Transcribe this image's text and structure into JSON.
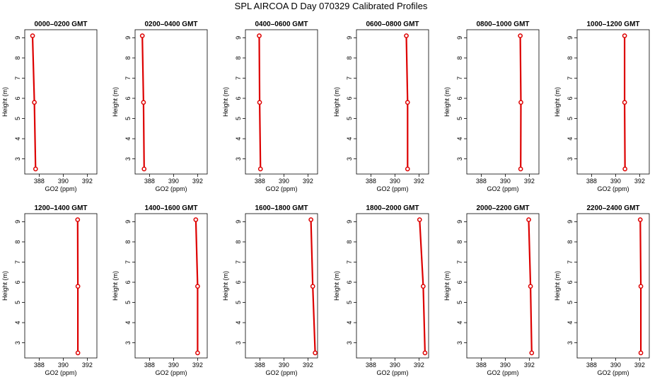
{
  "figure": {
    "title": "SPL AIRCOA D  Day 070329  Calibrated Profiles"
  },
  "chart_data": [
    {
      "type": "line",
      "title": "0000–0200 GMT",
      "xlabel": "GO2 (ppm)",
      "ylabel": "Height (m)",
      "xlim": [
        386.8,
        392.8
      ],
      "ylim": [
        2.25,
        9.4
      ],
      "xticks": [
        388,
        390,
        392
      ],
      "yticks": [
        3,
        4,
        5,
        6,
        7,
        8,
        9
      ],
      "series": [
        {
          "x": [
            387.45,
            387.6,
            387.7
          ],
          "y": [
            9.1,
            5.8,
            2.5
          ]
        }
      ]
    },
    {
      "type": "line",
      "title": "0200–0400 GMT",
      "xlabel": "GO2 (ppm)",
      "ylabel": "Height (m)",
      "xlim": [
        386.8,
        392.8
      ],
      "ylim": [
        2.25,
        9.4
      ],
      "xticks": [
        388,
        390,
        392
      ],
      "yticks": [
        3,
        4,
        5,
        6,
        7,
        8,
        9
      ],
      "series": [
        {
          "x": [
            387.4,
            387.5,
            387.55
          ],
          "y": [
            9.1,
            5.8,
            2.5
          ]
        }
      ]
    },
    {
      "type": "line",
      "title": "0400–0600 GMT",
      "xlabel": "GO2 (ppm)",
      "ylabel": "Height (m)",
      "xlim": [
        386.8,
        392.8
      ],
      "ylim": [
        2.25,
        9.4
      ],
      "xticks": [
        388,
        390,
        392
      ],
      "yticks": [
        3,
        4,
        5,
        6,
        7,
        8,
        9
      ],
      "series": [
        {
          "x": [
            387.95,
            387.98,
            388.05
          ],
          "y": [
            9.1,
            5.8,
            2.5
          ]
        }
      ]
    },
    {
      "type": "line",
      "title": "0600–0800 GMT",
      "xlabel": "GO2 (ppm)",
      "ylabel": "Height (m)",
      "xlim": [
        386.8,
        392.8
      ],
      "ylim": [
        2.25,
        9.4
      ],
      "xticks": [
        388,
        390,
        392
      ],
      "yticks": [
        3,
        4,
        5,
        6,
        7,
        8,
        9
      ],
      "series": [
        {
          "x": [
            390.95,
            391.05,
            391.05
          ],
          "y": [
            9.1,
            5.8,
            2.5
          ]
        }
      ]
    },
    {
      "type": "line",
      "title": "0800–1000 GMT",
      "xlabel": "GO2 (ppm)",
      "ylabel": "Height (m)",
      "xlim": [
        386.8,
        392.8
      ],
      "ylim": [
        2.25,
        9.4
      ],
      "xticks": [
        388,
        390,
        392
      ],
      "yticks": [
        3,
        4,
        5,
        6,
        7,
        8,
        9
      ],
      "series": [
        {
          "x": [
            391.25,
            391.3,
            391.28
          ],
          "y": [
            9.1,
            5.8,
            2.5
          ]
        }
      ]
    },
    {
      "type": "line",
      "title": "1000–1200 GMT",
      "xlabel": "GO2 (ppm)",
      "ylabel": "Height (m)",
      "xlim": [
        386.8,
        392.8
      ],
      "ylim": [
        2.25,
        9.4
      ],
      "xticks": [
        388,
        390,
        392
      ],
      "yticks": [
        3,
        4,
        5,
        6,
        7,
        8,
        9
      ],
      "series": [
        {
          "x": [
            390.75,
            390.75,
            390.78
          ],
          "y": [
            9.1,
            5.8,
            2.5
          ]
        }
      ]
    },
    {
      "type": "line",
      "title": "1200–1400 GMT",
      "xlabel": "GO2 (ppm)",
      "ylabel": "Height (m)",
      "xlim": [
        386.8,
        392.8
      ],
      "ylim": [
        2.25,
        9.4
      ],
      "xticks": [
        388,
        390,
        392
      ],
      "yticks": [
        3,
        4,
        5,
        6,
        7,
        8,
        9
      ],
      "series": [
        {
          "x": [
            391.2,
            391.22,
            391.22
          ],
          "y": [
            9.1,
            5.8,
            2.5
          ]
        }
      ]
    },
    {
      "type": "line",
      "title": "1400–1600 GMT",
      "xlabel": "GO2 (ppm)",
      "ylabel": "Height (m)",
      "xlim": [
        386.8,
        392.8
      ],
      "ylim": [
        2.25,
        9.4
      ],
      "xticks": [
        388,
        390,
        392
      ],
      "yticks": [
        3,
        4,
        5,
        6,
        7,
        8,
        9
      ],
      "series": [
        {
          "x": [
            391.85,
            392.0,
            392.0
          ],
          "y": [
            9.1,
            5.8,
            2.5
          ]
        }
      ]
    },
    {
      "type": "line",
      "title": "1600–1800 GMT",
      "xlabel": "GO2 (ppm)",
      "ylabel": "Height (m)",
      "xlim": [
        386.8,
        392.8
      ],
      "ylim": [
        2.25,
        9.4
      ],
      "xticks": [
        388,
        390,
        392
      ],
      "yticks": [
        3,
        4,
        5,
        6,
        7,
        8,
        9
      ],
      "series": [
        {
          "x": [
            392.25,
            392.4,
            392.6
          ],
          "y": [
            9.1,
            5.8,
            2.5
          ]
        }
      ]
    },
    {
      "type": "line",
      "title": "1800–2000 GMT",
      "xlabel": "GO2 (ppm)",
      "ylabel": "Height (m)",
      "xlim": [
        386.8,
        392.8
      ],
      "ylim": [
        2.25,
        9.4
      ],
      "xticks": [
        388,
        390,
        392
      ],
      "yticks": [
        3,
        4,
        5,
        6,
        7,
        8,
        9
      ],
      "series": [
        {
          "x": [
            392.05,
            392.35,
            392.5
          ],
          "y": [
            9.1,
            5.8,
            2.5
          ]
        }
      ]
    },
    {
      "type": "line",
      "title": "2000–2200 GMT",
      "xlabel": "GO2 (ppm)",
      "ylabel": "Height (m)",
      "xlim": [
        386.8,
        392.8
      ],
      "ylim": [
        2.25,
        9.4
      ],
      "xticks": [
        388,
        390,
        392
      ],
      "yticks": [
        3,
        4,
        5,
        6,
        7,
        8,
        9
      ],
      "series": [
        {
          "x": [
            391.95,
            392.1,
            392.2
          ],
          "y": [
            9.1,
            5.8,
            2.5
          ]
        }
      ]
    },
    {
      "type": "line",
      "title": "2200–2400 GMT",
      "xlabel": "GO2 (ppm)",
      "ylabel": "Height (m)",
      "xlim": [
        386.8,
        392.8
      ],
      "ylim": [
        2.25,
        9.4
      ],
      "xticks": [
        388,
        390,
        392
      ],
      "yticks": [
        3,
        4,
        5,
        6,
        7,
        8,
        9
      ],
      "series": [
        {
          "x": [
            392.05,
            392.1,
            392.1
          ],
          "y": [
            9.1,
            5.8,
            2.5
          ]
        }
      ]
    }
  ]
}
